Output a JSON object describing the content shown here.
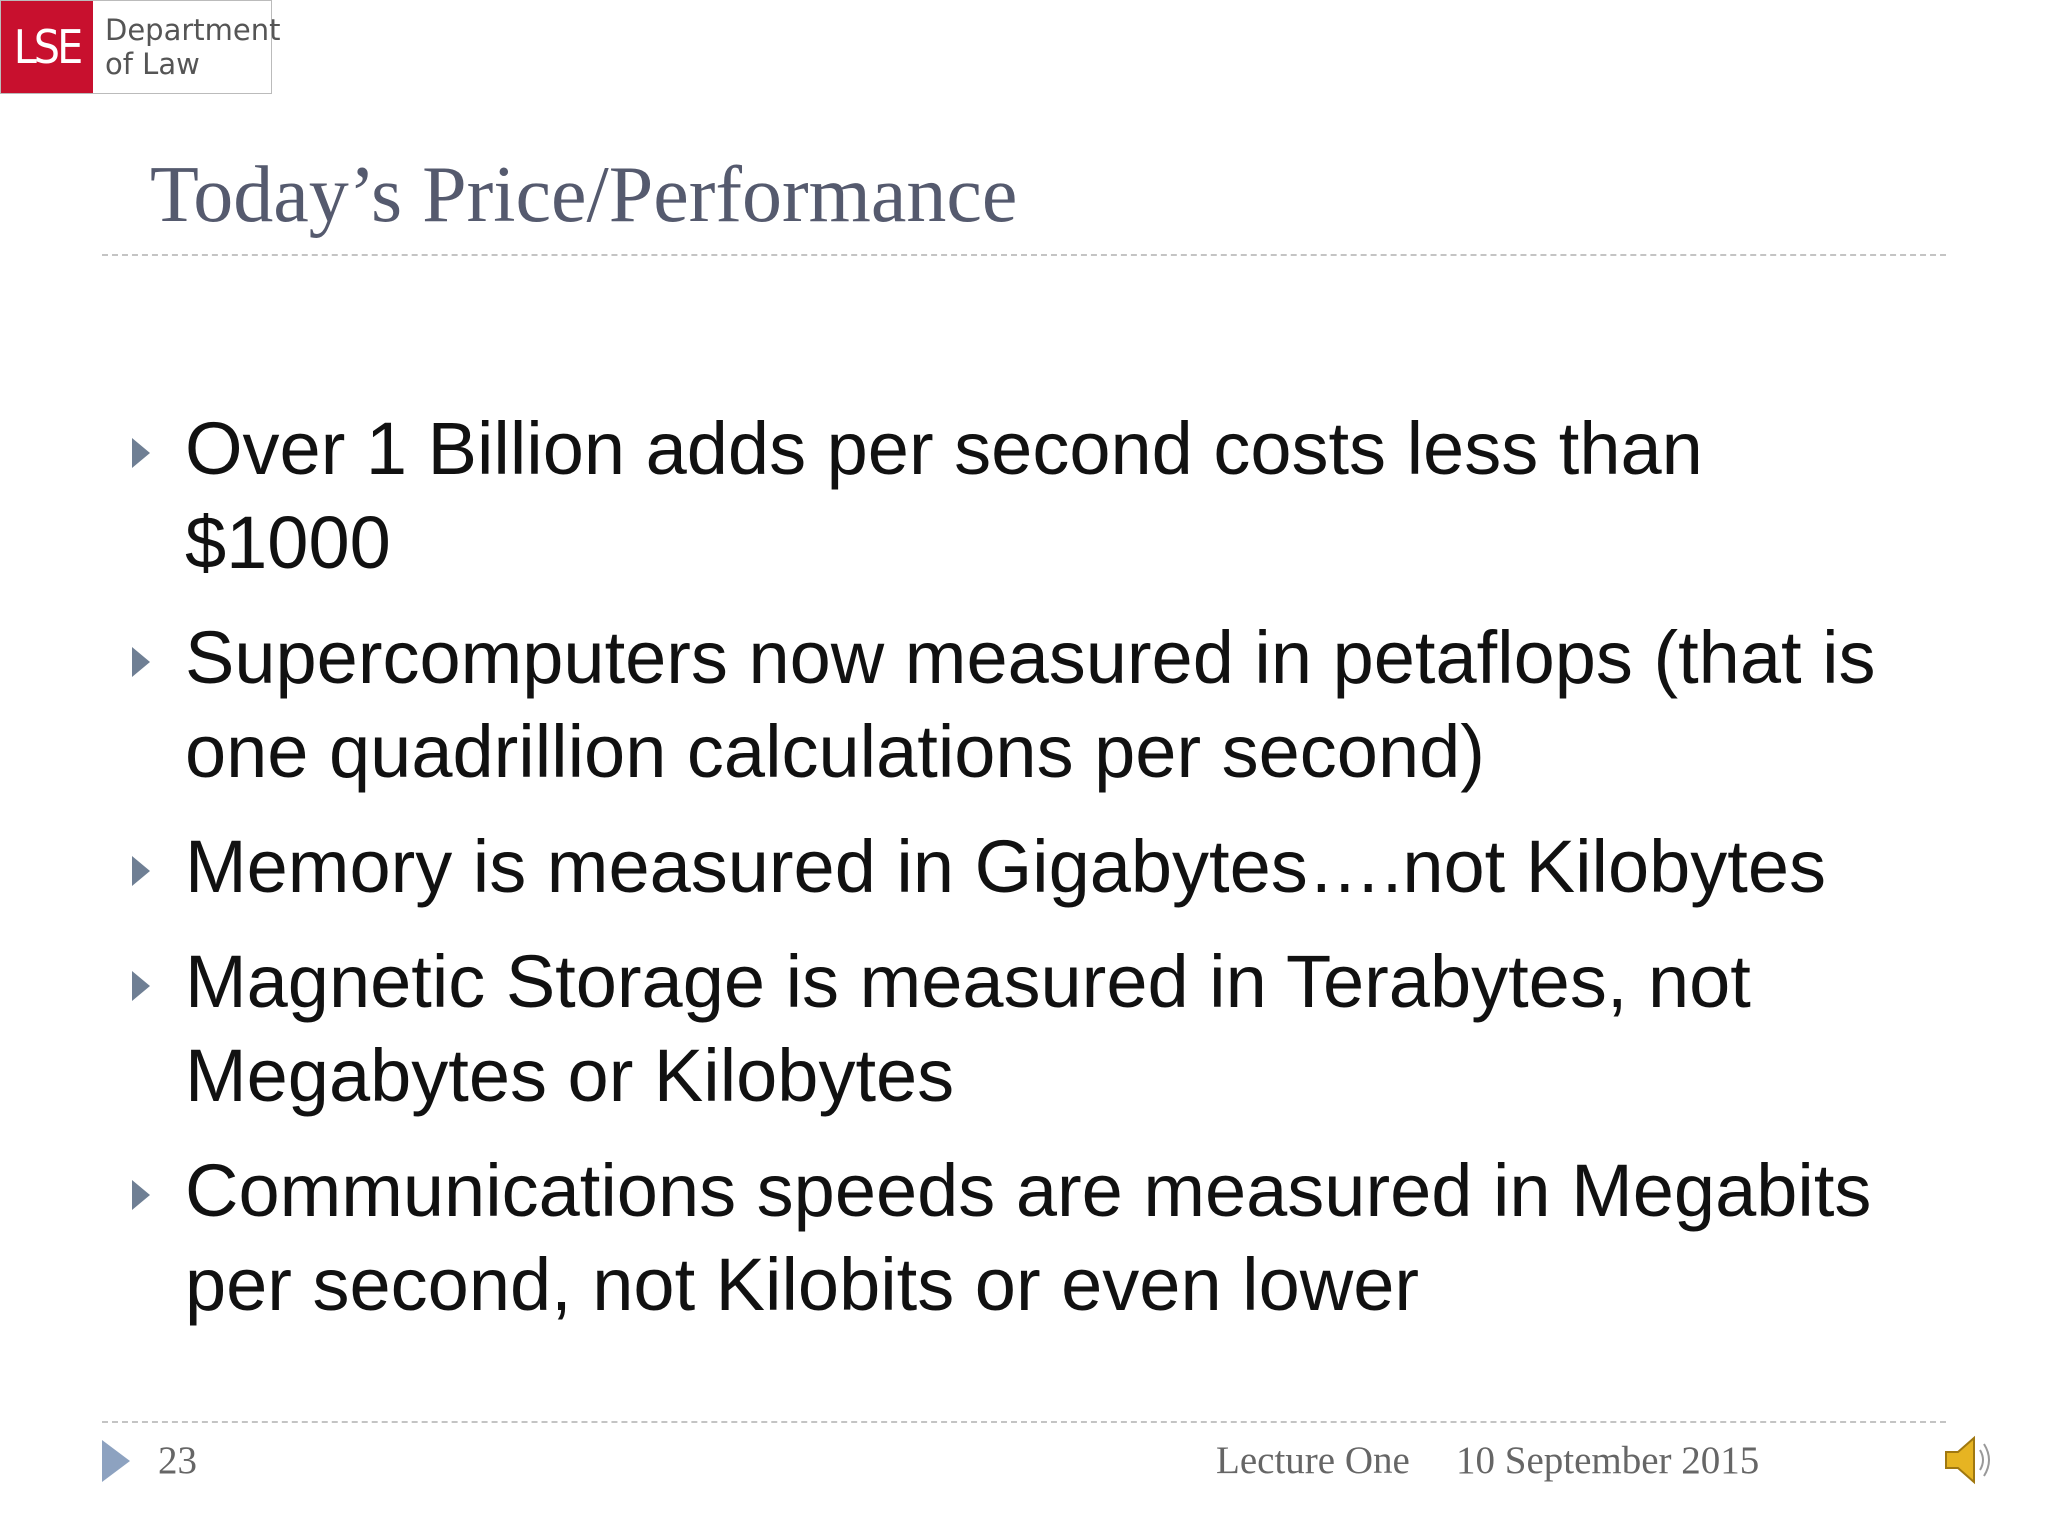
{
  "logo": {
    "mark": "LSE",
    "line1": "Department",
    "line2": "of Law"
  },
  "title": "Today’s Price/Performance",
  "bullets": [
    "Over 1 Billion adds per second costs less than $1000",
    "Supercomputers now measured in petaflops (that is one quadrillion calculations per second)",
    "Memory is measured in Gigabytes….not Kilobytes",
    "Magnetic Storage is measured in Terabytes, not Megabytes or Kilobytes",
    "Communications speeds are measured in Megabits per second, not Kilobits or even lower"
  ],
  "footer": {
    "page": "23",
    "lecture": "Lecture One",
    "date": "10 September 2015"
  }
}
